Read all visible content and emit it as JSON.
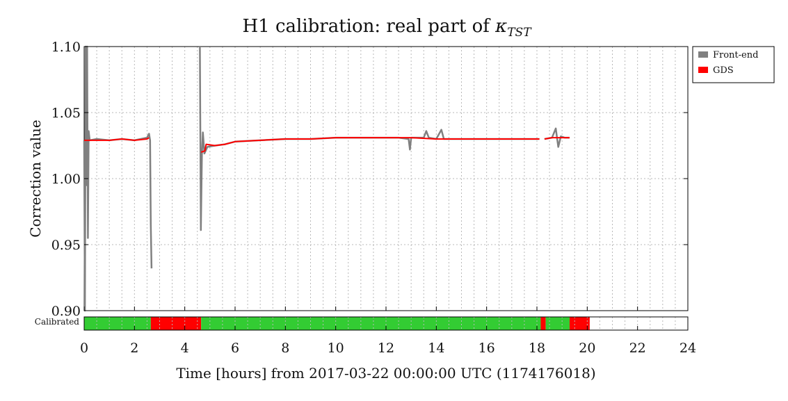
{
  "chart_data": {
    "type": "line",
    "title_prefix": "H1 calibration: real part of ",
    "title_symbol": "κ",
    "title_subscript": "TST",
    "xlabel": "Time [hours] from 2017-03-22 00:00:00 UTC (1174176018)",
    "ylabel": "Correction value",
    "xlim": [
      0,
      24
    ],
    "ylim": [
      0.9,
      1.1
    ],
    "x_ticks": [
      0,
      2,
      4,
      6,
      8,
      10,
      12,
      14,
      16,
      18,
      20,
      22,
      24
    ],
    "x_tick_labels": [
      "0",
      "2",
      "4",
      "6",
      "8",
      "10",
      "12",
      "14",
      "16",
      "18",
      "20",
      "22",
      "24"
    ],
    "y_ticks": [
      0.9,
      0.95,
      1.0,
      1.05,
      1.1
    ],
    "y_tick_labels": [
      "0.90",
      "0.95",
      "1.00",
      "1.05",
      "1.10"
    ],
    "grid": true,
    "legend_position": "outside-top-right",
    "series": [
      {
        "name": "Front-end",
        "color": "#808080",
        "segments": [
          [
            [
              0.0,
              1.029
            ],
            [
              0.03,
              0.9
            ],
            [
              0.06,
              1.1
            ],
            [
              0.09,
              0.995
            ],
            [
              0.12,
              1.1
            ],
            [
              0.15,
              0.955
            ],
            [
              0.18,
              1.036
            ],
            [
              0.22,
              1.029
            ],
            [
              0.5,
              1.03
            ],
            [
              1.0,
              1.029
            ],
            [
              1.5,
              1.03
            ],
            [
              2.0,
              1.029
            ],
            [
              2.5,
              1.031
            ],
            [
              2.58,
              1.034
            ],
            [
              2.62,
              1.029
            ],
            [
              2.65,
              0.965
            ],
            [
              2.68,
              0.932
            ]
          ],
          [
            [
              4.6,
              1.1
            ],
            [
              4.64,
              0.961
            ],
            [
              4.68,
              1.018
            ],
            [
              4.72,
              1.035
            ],
            [
              4.78,
              1.019
            ],
            [
              4.9,
              1.024
            ],
            [
              5.2,
              1.025
            ],
            [
              5.6,
              1.026
            ],
            [
              6.0,
              1.028
            ],
            [
              7.0,
              1.029
            ],
            [
              8.0,
              1.03
            ],
            [
              9.0,
              1.03
            ],
            [
              10.0,
              1.031
            ],
            [
              11.0,
              1.031
            ],
            [
              12.0,
              1.031
            ],
            [
              12.5,
              1.031
            ],
            [
              12.9,
              1.03
            ],
            [
              12.95,
              1.022
            ],
            [
              13.0,
              1.031
            ],
            [
              13.5,
              1.031
            ],
            [
              13.6,
              1.036
            ],
            [
              13.7,
              1.031
            ],
            [
              14.0,
              1.03
            ],
            [
              14.2,
              1.037
            ],
            [
              14.3,
              1.03
            ],
            [
              15.0,
              1.03
            ],
            [
              16.0,
              1.03
            ],
            [
              17.0,
              1.03
            ],
            [
              18.0,
              1.03
            ],
            [
              18.1,
              1.03
            ]
          ],
          [
            [
              18.3,
              1.03
            ],
            [
              18.6,
              1.031
            ],
            [
              18.75,
              1.038
            ],
            [
              18.85,
              1.024
            ],
            [
              18.95,
              1.032
            ],
            [
              19.1,
              1.031
            ],
            [
              19.3,
              1.031
            ]
          ]
        ]
      },
      {
        "name": "GDS",
        "color": "#ff0000",
        "segments": [
          [
            [
              0.0,
              1.029
            ],
            [
              0.5,
              1.029
            ],
            [
              1.0,
              1.029
            ],
            [
              1.5,
              1.03
            ],
            [
              2.0,
              1.029
            ],
            [
              2.5,
              1.03
            ],
            [
              2.58,
              1.031
            ]
          ],
          [
            [
              4.65,
              1.02
            ],
            [
              4.8,
              1.021
            ],
            [
              4.85,
              1.026
            ],
            [
              5.2,
              1.025
            ],
            [
              5.6,
              1.026
            ],
            [
              6.0,
              1.028
            ],
            [
              7.0,
              1.029
            ],
            [
              8.0,
              1.03
            ],
            [
              9.0,
              1.03
            ],
            [
              10.0,
              1.031
            ],
            [
              11.0,
              1.031
            ],
            [
              12.0,
              1.031
            ],
            [
              13.0,
              1.031
            ],
            [
              14.0,
              1.03
            ],
            [
              15.0,
              1.03
            ],
            [
              16.0,
              1.03
            ],
            [
              17.0,
              1.03
            ],
            [
              18.0,
              1.03
            ],
            [
              18.1,
              1.03
            ]
          ],
          [
            [
              18.3,
              1.03
            ],
            [
              18.6,
              1.031
            ],
            [
              19.0,
              1.031
            ],
            [
              19.3,
              1.031
            ]
          ]
        ]
      }
    ],
    "status_bar": {
      "label": "Calibrated",
      "good_color": "#33cc33",
      "bad_color": "#ff0000",
      "empty_color": "#ffffff",
      "segments": [
        {
          "start": 0.0,
          "end": 2.65,
          "state": "good"
        },
        {
          "start": 2.65,
          "end": 4.65,
          "state": "bad"
        },
        {
          "start": 4.65,
          "end": 18.15,
          "state": "good"
        },
        {
          "start": 18.15,
          "end": 18.35,
          "state": "bad"
        },
        {
          "start": 18.35,
          "end": 19.3,
          "state": "good"
        },
        {
          "start": 19.3,
          "end": 20.1,
          "state": "bad"
        },
        {
          "start": 20.1,
          "end": 24.0,
          "state": "empty"
        }
      ]
    }
  }
}
